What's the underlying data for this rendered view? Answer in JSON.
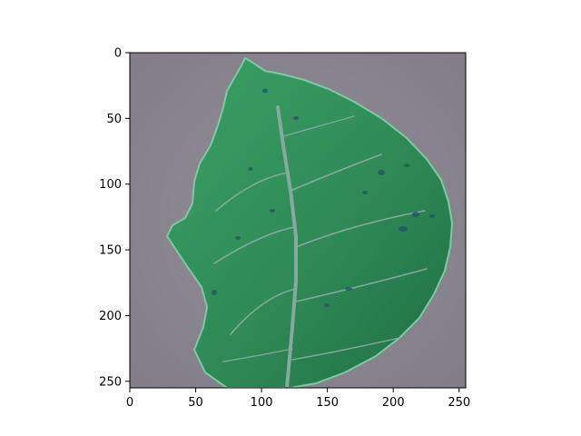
{
  "figure": {
    "image_subject": "green-leaf-photo",
    "background_color": "#8c8890",
    "leaf_color": "#2f8a55",
    "vein_color": "#86a8a0",
    "spot_color": "#24506a",
    "axis_color": "#000000"
  },
  "chart_data": {
    "type": "image",
    "xlim": [
      0,
      255
    ],
    "ylim": [
      255,
      0
    ],
    "x_ticks": [
      0,
      50,
      100,
      150,
      200,
      250
    ],
    "y_ticks": [
      0,
      50,
      100,
      150,
      200,
      250
    ],
    "x_tick_labels": [
      "0",
      "50",
      "100",
      "150",
      "200",
      "250"
    ],
    "y_tick_labels": [
      "0",
      "50",
      "100",
      "150",
      "200",
      "250"
    ],
    "grid": false
  }
}
